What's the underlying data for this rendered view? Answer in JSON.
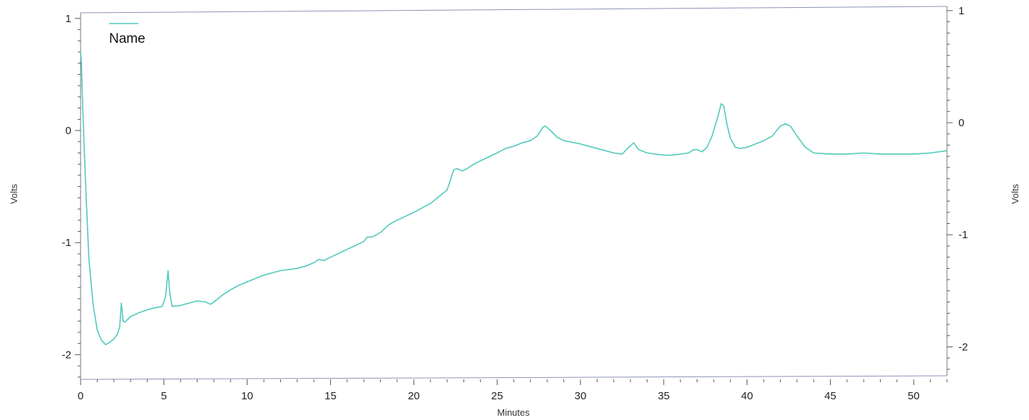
{
  "chart_data": {
    "type": "line",
    "title": "",
    "xlabel": "Minutes",
    "ylabel_left": "Volts",
    "ylabel_right": "Volts",
    "xlim": [
      0,
      52
    ],
    "ylim_left": [
      -2.22,
      1.05
    ],
    "ylim_right": [
      -2.22,
      1.05
    ],
    "right_axis_offset": 0.07,
    "x_ticks": [
      0,
      5,
      10,
      15,
      20,
      25,
      30,
      35,
      40,
      45,
      50
    ],
    "y_ticks_left": [
      1,
      0,
      -1,
      -2
    ],
    "y_ticks_right": [
      1,
      0,
      -1,
      -2
    ],
    "grid": false,
    "legend_position": "top-left",
    "colors": {
      "line": "#4fc9bc",
      "frame_top": "#8a93b8",
      "frame_bottom": "#8a93b8",
      "frame_side": "#7a7a7a"
    },
    "series": [
      {
        "name": "Name",
        "x": [
          0,
          0.05,
          0.1,
          0.2,
          0.35,
          0.5,
          0.75,
          1.0,
          1.25,
          1.5,
          1.75,
          2.0,
          2.2,
          2.35,
          2.45,
          2.55,
          2.65,
          2.8,
          3.0,
          3.3,
          3.6,
          4.0,
          4.5,
          4.9,
          5.1,
          5.25,
          5.35,
          5.5,
          6.0,
          6.5,
          7.0,
          7.5,
          7.8,
          8.0,
          8.5,
          9.0,
          9.5,
          10.0,
          11.0,
          12.0,
          13.0,
          13.5,
          14.0,
          14.3,
          14.6,
          15.0,
          16.0,
          17.0,
          17.2,
          17.5,
          18.0,
          18.5,
          19.0,
          20.0,
          21.0,
          22.0,
          22.4,
          22.6,
          22.9,
          23.2,
          23.6,
          24.0,
          25.0,
          25.5,
          26.0,
          26.5,
          27.0,
          27.4,
          27.75,
          27.9,
          28.2,
          28.6,
          29.0,
          30.0,
          31.0,
          32.0,
          32.5,
          32.9,
          33.2,
          33.5,
          34.0,
          35.0,
          35.5,
          36.0,
          36.5,
          36.8,
          37.0,
          37.3,
          37.6,
          37.9,
          38.2,
          38.45,
          38.6,
          38.8,
          39.0,
          39.3,
          39.6,
          40.0,
          40.5,
          41.0,
          41.5,
          42.0,
          42.3,
          42.6,
          43.0,
          43.5,
          44.0,
          45.0,
          46.0,
          47.0,
          48.0,
          49.0,
          50.0,
          51.0,
          52.0
        ],
        "y": [
          0.7,
          0.6,
          0.35,
          -0.1,
          -0.65,
          -1.15,
          -1.55,
          -1.78,
          -1.87,
          -1.91,
          -1.89,
          -1.86,
          -1.82,
          -1.75,
          -1.54,
          -1.7,
          -1.71,
          -1.69,
          -1.66,
          -1.64,
          -1.62,
          -1.6,
          -1.58,
          -1.57,
          -1.48,
          -1.25,
          -1.45,
          -1.57,
          -1.56,
          -1.54,
          -1.52,
          -1.53,
          -1.55,
          -1.53,
          -1.47,
          -1.42,
          -1.38,
          -1.35,
          -1.29,
          -1.25,
          -1.23,
          -1.21,
          -1.18,
          -1.15,
          -1.16,
          -1.13,
          -1.06,
          -0.99,
          -0.95,
          -0.95,
          -0.91,
          -0.84,
          -0.8,
          -0.73,
          -0.65,
          -0.53,
          -0.35,
          -0.34,
          -0.36,
          -0.34,
          -0.3,
          -0.27,
          -0.2,
          -0.16,
          -0.14,
          -0.11,
          -0.09,
          -0.05,
          0.03,
          0.04,
          0.0,
          -0.06,
          -0.09,
          -0.12,
          -0.16,
          -0.2,
          -0.21,
          -0.15,
          -0.11,
          -0.17,
          -0.2,
          -0.22,
          -0.22,
          -0.21,
          -0.2,
          -0.17,
          -0.17,
          -0.19,
          -0.15,
          -0.05,
          0.1,
          0.24,
          0.22,
          0.05,
          -0.07,
          -0.15,
          -0.16,
          -0.15,
          -0.12,
          -0.09,
          -0.05,
          0.04,
          0.06,
          0.04,
          -0.05,
          -0.15,
          -0.2,
          -0.21,
          -0.21,
          -0.2,
          -0.21,
          -0.21,
          -0.21,
          -0.2,
          -0.18
        ]
      }
    ]
  }
}
